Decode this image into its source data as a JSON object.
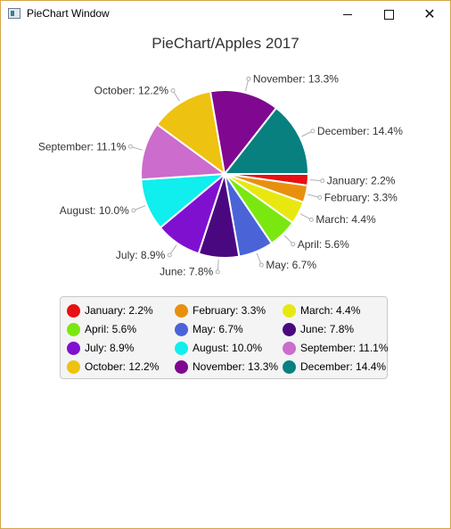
{
  "window": {
    "title": "PieChart Window"
  },
  "chart_data": {
    "type": "pie",
    "title": "PieChart/Apples 2017",
    "legend_position": "bottom",
    "slices": [
      {
        "label": "January",
        "value": 2.2,
        "text": "January: 2.2%",
        "color": "#e81010"
      },
      {
        "label": "February",
        "value": 3.3,
        "text": "February: 3.3%",
        "color": "#e8900e"
      },
      {
        "label": "March",
        "value": 4.4,
        "text": "March: 4.4%",
        "color": "#e8e810"
      },
      {
        "label": "April",
        "value": 5.6,
        "text": "April: 5.6%",
        "color": "#7ae810"
      },
      {
        "label": "May",
        "value": 6.7,
        "text": "May: 6.7%",
        "color": "#4a64d8"
      },
      {
        "label": "June",
        "value": 7.8,
        "text": "June: 7.8%",
        "color": "#4a0880"
      },
      {
        "label": "July",
        "value": 8.9,
        "text": "July: 8.9%",
        "color": "#8010d0"
      },
      {
        "label": "August",
        "value": 10.0,
        "text": "August: 10.0%",
        "color": "#10eeee"
      },
      {
        "label": "September",
        "value": 11.1,
        "text": "September: 11.1%",
        "color": "#cc6ccc"
      },
      {
        "label": "October",
        "value": 12.2,
        "text": "October: 12.2%",
        "color": "#eec210"
      },
      {
        "label": "November",
        "value": 13.3,
        "text": "November: 13.3%",
        "color": "#800890"
      },
      {
        "label": "December",
        "value": 14.4,
        "text": "December: 14.4%",
        "color": "#088080"
      }
    ]
  }
}
